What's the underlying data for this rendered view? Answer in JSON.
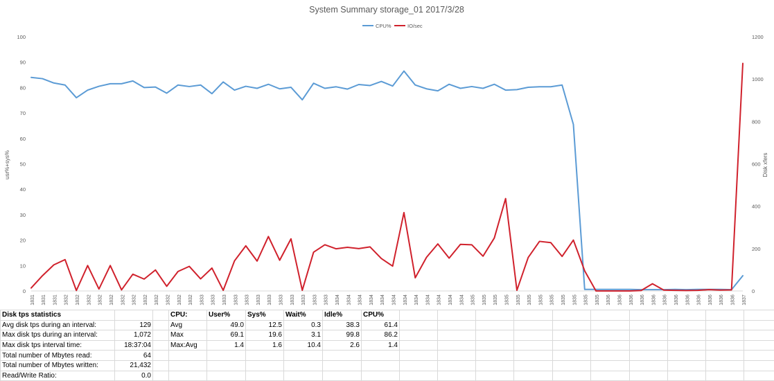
{
  "chart_data": {
    "type": "line",
    "title": "System Summary storage_01  2017/3/28",
    "y_left_label": "usr%+sys%",
    "y_right_label": "Disk xfers",
    "y_left_ticks": [
      "0",
      "10",
      "20",
      "30",
      "40",
      "50",
      "60",
      "70",
      "80",
      "90",
      "100"
    ],
    "y_right_ticks": [
      "0",
      "200",
      "400",
      "600",
      "800",
      "1000",
      "1200"
    ],
    "ylim_left": [
      0,
      100
    ],
    "ylim_right": [
      0,
      1200
    ],
    "legend_position": "top-center",
    "x": [
      "1831",
      "1831",
      "1831",
      "1832",
      "1832",
      "1832",
      "1832",
      "1832",
      "1832",
      "1832",
      "1832",
      "1832",
      "1832",
      "1832",
      "1832",
      "1833",
      "1833",
      "1833",
      "1833",
      "1833",
      "1833",
      "1833",
      "1833",
      "1833",
      "1833",
      "1833",
      "1833",
      "1834",
      "1834",
      "1834",
      "1834",
      "1834",
      "1834",
      "1834",
      "1834",
      "1834",
      "1834",
      "1834",
      "1834",
      "1835",
      "1835",
      "1835",
      "1835",
      "1835",
      "1835",
      "1835",
      "1835",
      "1835",
      "1835",
      "1835",
      "1835",
      "1836",
      "1836",
      "1836",
      "1836",
      "1836",
      "1836",
      "1836",
      "1836",
      "1836",
      "1836",
      "1836",
      "1836",
      "1837"
    ],
    "series": [
      {
        "name": "CPU%",
        "axis": "left",
        "color": "#5b9bd5",
        "values": [
          84.0,
          83.5,
          81.8,
          81.0,
          76.0,
          79.0,
          80.5,
          81.5,
          81.5,
          82.6,
          80.0,
          80.2,
          77.8,
          81.0,
          80.4,
          81.0,
          77.6,
          82.2,
          79.0,
          80.5,
          79.7,
          81.3,
          79.5,
          80.1,
          75.2,
          81.7,
          79.7,
          80.3,
          79.4,
          81.2,
          80.8,
          82.4,
          80.6,
          86.5,
          81.0,
          79.5,
          78.7,
          81.3,
          79.7,
          80.4,
          79.7,
          81.3,
          79.0,
          79.2,
          80.1,
          80.3,
          80.3,
          81.0,
          65.5,
          0.6,
          0.6,
          0.6,
          0.6,
          0.6,
          0.5,
          0.5,
          0.5,
          0.6,
          0.5,
          0.6,
          0.6,
          0.6,
          0.5,
          6.0
        ]
      },
      {
        "name": "IO/sec",
        "axis": "right",
        "color": "#d0212c",
        "values": [
          14,
          72,
          123,
          148,
          2,
          120,
          9,
          120,
          5,
          79,
          56,
          99,
          22,
          92,
          116,
          57,
          108,
          3,
          142,
          213,
          141,
          257,
          145,
          246,
          3,
          183,
          218,
          199,
          206,
          200,
          208,
          153,
          117,
          370,
          62,
          159,
          222,
          155,
          220,
          218,
          164,
          250,
          436,
          3,
          158,
          234,
          228,
          163,
          240,
          95,
          0,
          0,
          0,
          0,
          2,
          34,
          4,
          3,
          2,
          3,
          6,
          4,
          5,
          1074
        ]
      }
    ]
  },
  "table": {
    "rows": [
      [
        "Disk tps statistics",
        "",
        "",
        "CPU:",
        "User%",
        "Sys%",
        "Wait%",
        "Idle%",
        "CPU%"
      ],
      [
        "Avg disk tps during an interval:",
        "129",
        "",
        "Avg",
        "49.0",
        "12.5",
        "0.3",
        "38.3",
        "61.4"
      ],
      [
        "Max disk tps during an interval:",
        "1,072",
        "",
        "Max",
        "69.1",
        "19.6",
        "3.1",
        "99.8",
        "86.2"
      ],
      [
        "Max disk tps interval time:",
        "18:37:04",
        "",
        "Max:Avg",
        "1.4",
        "1.6",
        "10.4",
        "2.6",
        "1.4"
      ],
      [
        "Total number of Mbytes read:",
        "64",
        "",
        "",
        "",
        "",
        "",
        "",
        ""
      ],
      [
        "Total number of Mbytes written:",
        "21,432",
        "",
        "",
        "",
        "",
        "",
        "",
        ""
      ],
      [
        "Read/Write Ratio:",
        "0.0",
        "",
        "",
        "",
        "",
        "",
        "",
        ""
      ]
    ]
  }
}
